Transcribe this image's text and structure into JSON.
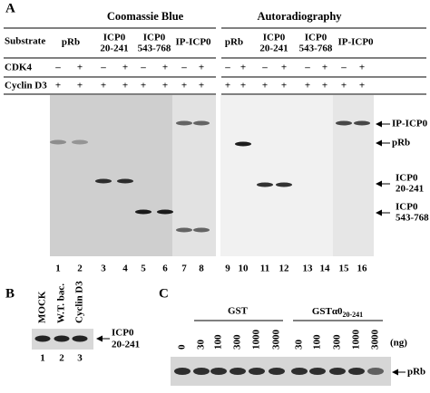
{
  "panel_a": {
    "label": "A",
    "coomassie_title": "Coomassie Blue",
    "autoradiography_title": "Autoradiography",
    "row_labels": [
      "Substrate",
      "CDK4",
      "Cyclin D3"
    ],
    "substrates": [
      [
        "pRb"
      ],
      [
        "ICP0",
        "20-241"
      ],
      [
        "ICP0",
        "543-768"
      ],
      [
        "IP-ICP0"
      ],
      [
        "pRb"
      ],
      [
        "ICP0",
        "20-241"
      ],
      [
        "ICP0",
        "543-768"
      ],
      [
        "IP-ICP0"
      ]
    ],
    "cdk4": [
      "–",
      "+",
      "–",
      "+",
      "–",
      "+",
      "–",
      "+",
      "–",
      "+",
      "–",
      "+",
      "–",
      "+",
      "–",
      "+"
    ],
    "cyclin_d3": [
      "+",
      "+",
      "+",
      "+",
      "+",
      "+",
      "+",
      "+",
      "+",
      "+",
      "+",
      "+",
      "+",
      "+",
      "+",
      "+"
    ],
    "lanes": [
      "1",
      "2",
      "3",
      "4",
      "5",
      "6",
      "7",
      "8",
      "9",
      "10",
      "11",
      "12",
      "13",
      "14",
      "15",
      "16"
    ],
    "band_labels": [
      [
        "IP-ICP0"
      ],
      [
        "pRb"
      ],
      [
        "ICP0",
        "20-241"
      ],
      [
        "ICP0",
        "543-768"
      ]
    ]
  },
  "panel_b": {
    "label": "B",
    "lane_names": [
      "MOCK",
      "W.T. bac.",
      "Cyclin D3"
    ],
    "lanes": [
      "1",
      "2",
      "3"
    ],
    "band_label": [
      "ICP0",
      "20-241"
    ]
  },
  "panel_c": {
    "label": "C",
    "group_gst": "GST",
    "group_gsta0": "GSTα0",
    "group_gsta0_sub": "20-241",
    "amounts": [
      "0",
      "30",
      "100",
      "300",
      "1000",
      "3000",
      "30",
      "100",
      "300",
      "1000",
      "3000"
    ],
    "unit": "(ng)",
    "band_label": "pRb"
  }
}
